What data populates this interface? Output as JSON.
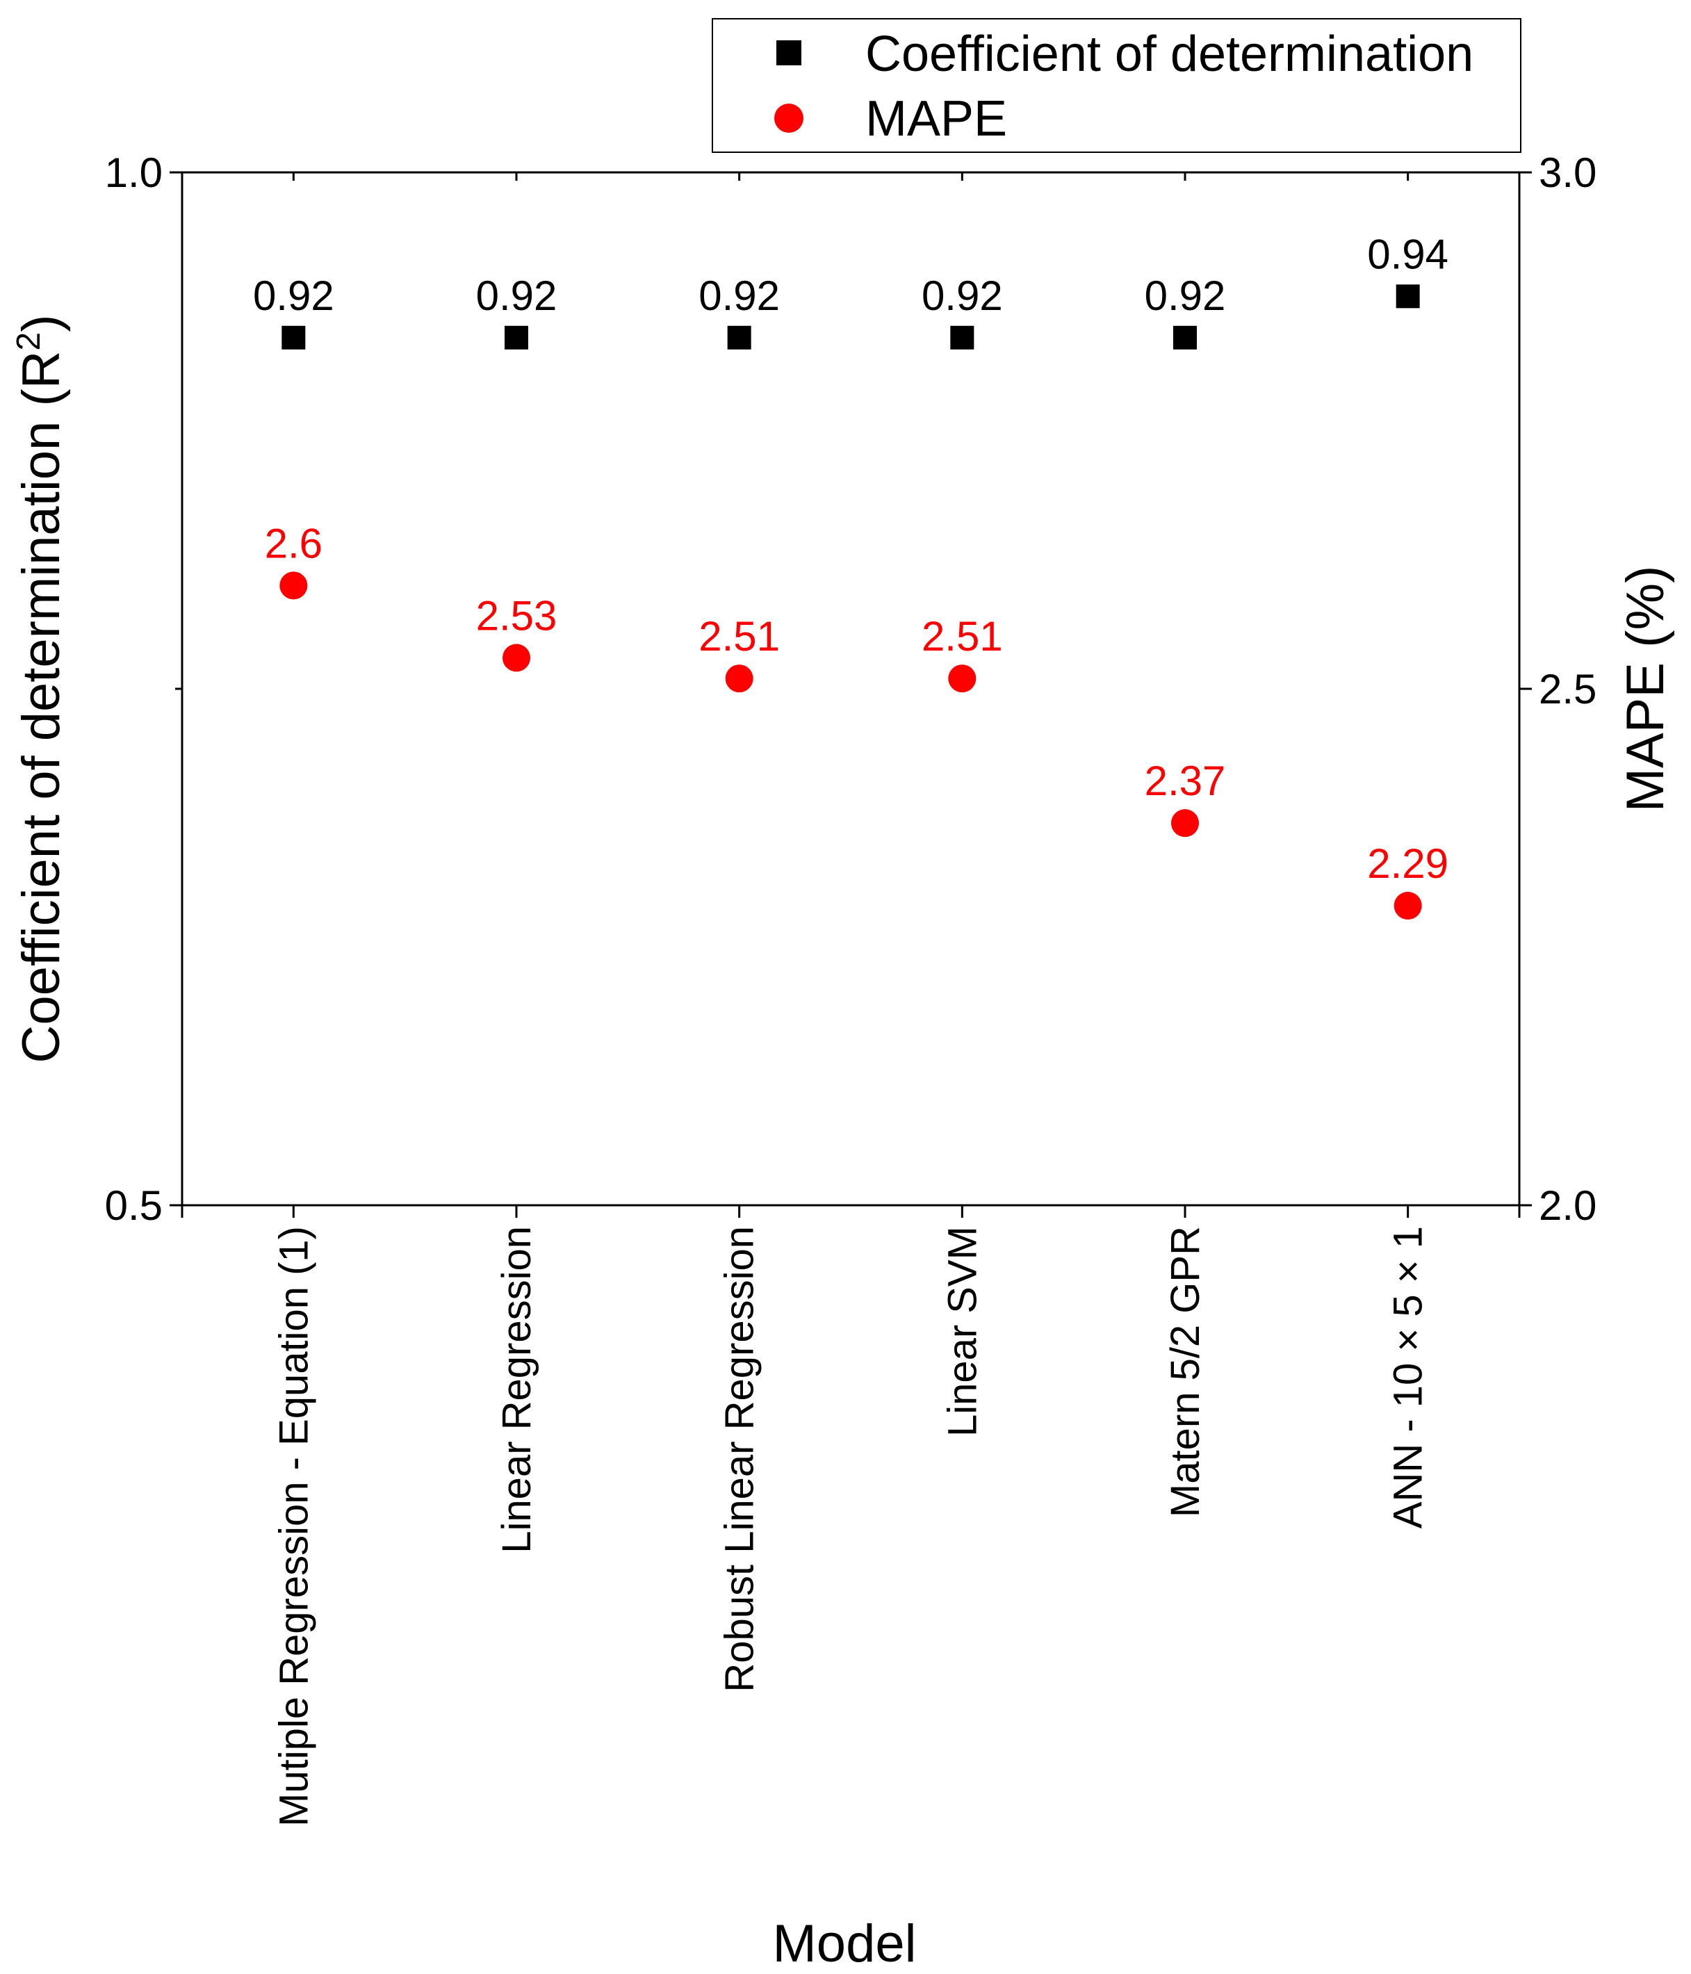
{
  "chart_data": {
    "type": "scatter",
    "xlabel": "Model",
    "ylabel_left": "Coefficient of determination (R",
    "ylabel_left_sup": "2",
    "ylabel_left_close": ")",
    "ylabel_right": "MAPE (%)",
    "categories": [
      "Mutiple Regression - Equation (1)",
      "Linear Regression",
      "Robust Linear Regression",
      "Linear SVM",
      "Matern 5/2 GPR",
      "ANN - 10 × 5 × 1"
    ],
    "left_axis": {
      "min": 0.5,
      "max": 1.0,
      "ticks": [
        "0.5",
        "1.0"
      ],
      "tick_values": [
        0.5,
        1.0
      ]
    },
    "right_axis": {
      "min": 2.0,
      "max": 3.0,
      "ticks": [
        "2.0",
        "2.5",
        "3.0"
      ],
      "tick_values": [
        2.0,
        2.5,
        3.0
      ]
    },
    "series": [
      {
        "name": "Coefficient of determination",
        "axis": "left",
        "marker": "square",
        "color": "#000000",
        "values": [
          0.92,
          0.92,
          0.92,
          0.92,
          0.92,
          0.94
        ],
        "labels": [
          "0.92",
          "0.92",
          "0.92",
          "0.92",
          "0.92",
          "0.94"
        ]
      },
      {
        "name": "MAPE",
        "axis": "right",
        "marker": "circle",
        "color": "#ff0000",
        "values": [
          2.6,
          2.53,
          2.51,
          2.51,
          2.37,
          2.29
        ],
        "labels": [
          "2.6",
          "2.53",
          "2.51",
          "2.51",
          "2.37",
          "2.29"
        ]
      }
    ],
    "legend": {
      "position": "top-right",
      "entries": [
        "Coefficient of determination",
        "MAPE"
      ]
    }
  }
}
